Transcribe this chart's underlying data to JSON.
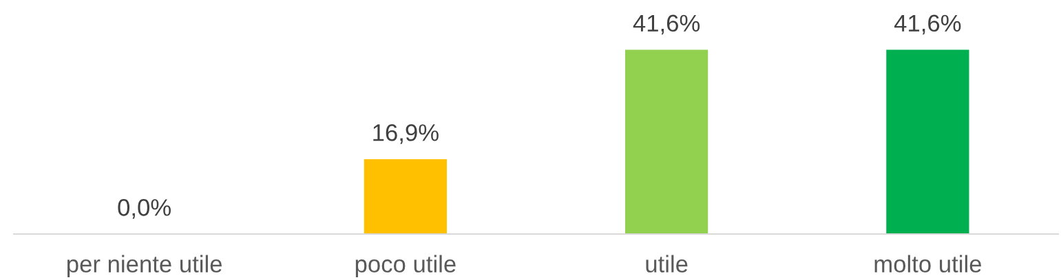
{
  "chart_data": {
    "type": "bar",
    "categories": [
      "per niente utile",
      "poco utile",
      "utile",
      "molto utile"
    ],
    "values": [
      0,
      16.9,
      41.6,
      41.6
    ],
    "colors": [
      "#ff0000",
      "#ffc000",
      "#92d050",
      "#00b050"
    ],
    "value_labels": [
      "0,0%",
      "16,9%",
      "41,6%",
      "41,6%"
    ],
    "tick_labels": "x",
    "grid": false,
    "legend": false
  }
}
